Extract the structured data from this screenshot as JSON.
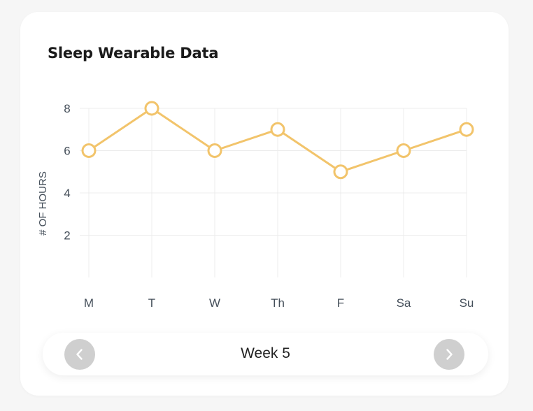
{
  "card": {
    "title": "Sleep Wearable Data"
  },
  "chart_data": {
    "type": "line",
    "title": "Sleep Wearable Data",
    "x": [
      "M",
      "T",
      "W",
      "Th",
      "F",
      "Sa",
      "Su"
    ],
    "series": [
      {
        "values": [
          6,
          8,
          6,
          7,
          5,
          6,
          7
        ]
      }
    ],
    "xlabel": "",
    "ylabel": "# OF HOURS",
    "yticks": [
      2,
      4,
      6,
      8
    ],
    "ylim": [
      0,
      8
    ],
    "grid": true,
    "line_color": "#f2c46b",
    "marker_fill": "#ffffff",
    "grid_color": "#ececec"
  },
  "pager": {
    "label": "Week 5",
    "prev_icon": "chevron-left-icon",
    "next_icon": "chevron-right-icon",
    "button_color": "#cfcfcf"
  }
}
